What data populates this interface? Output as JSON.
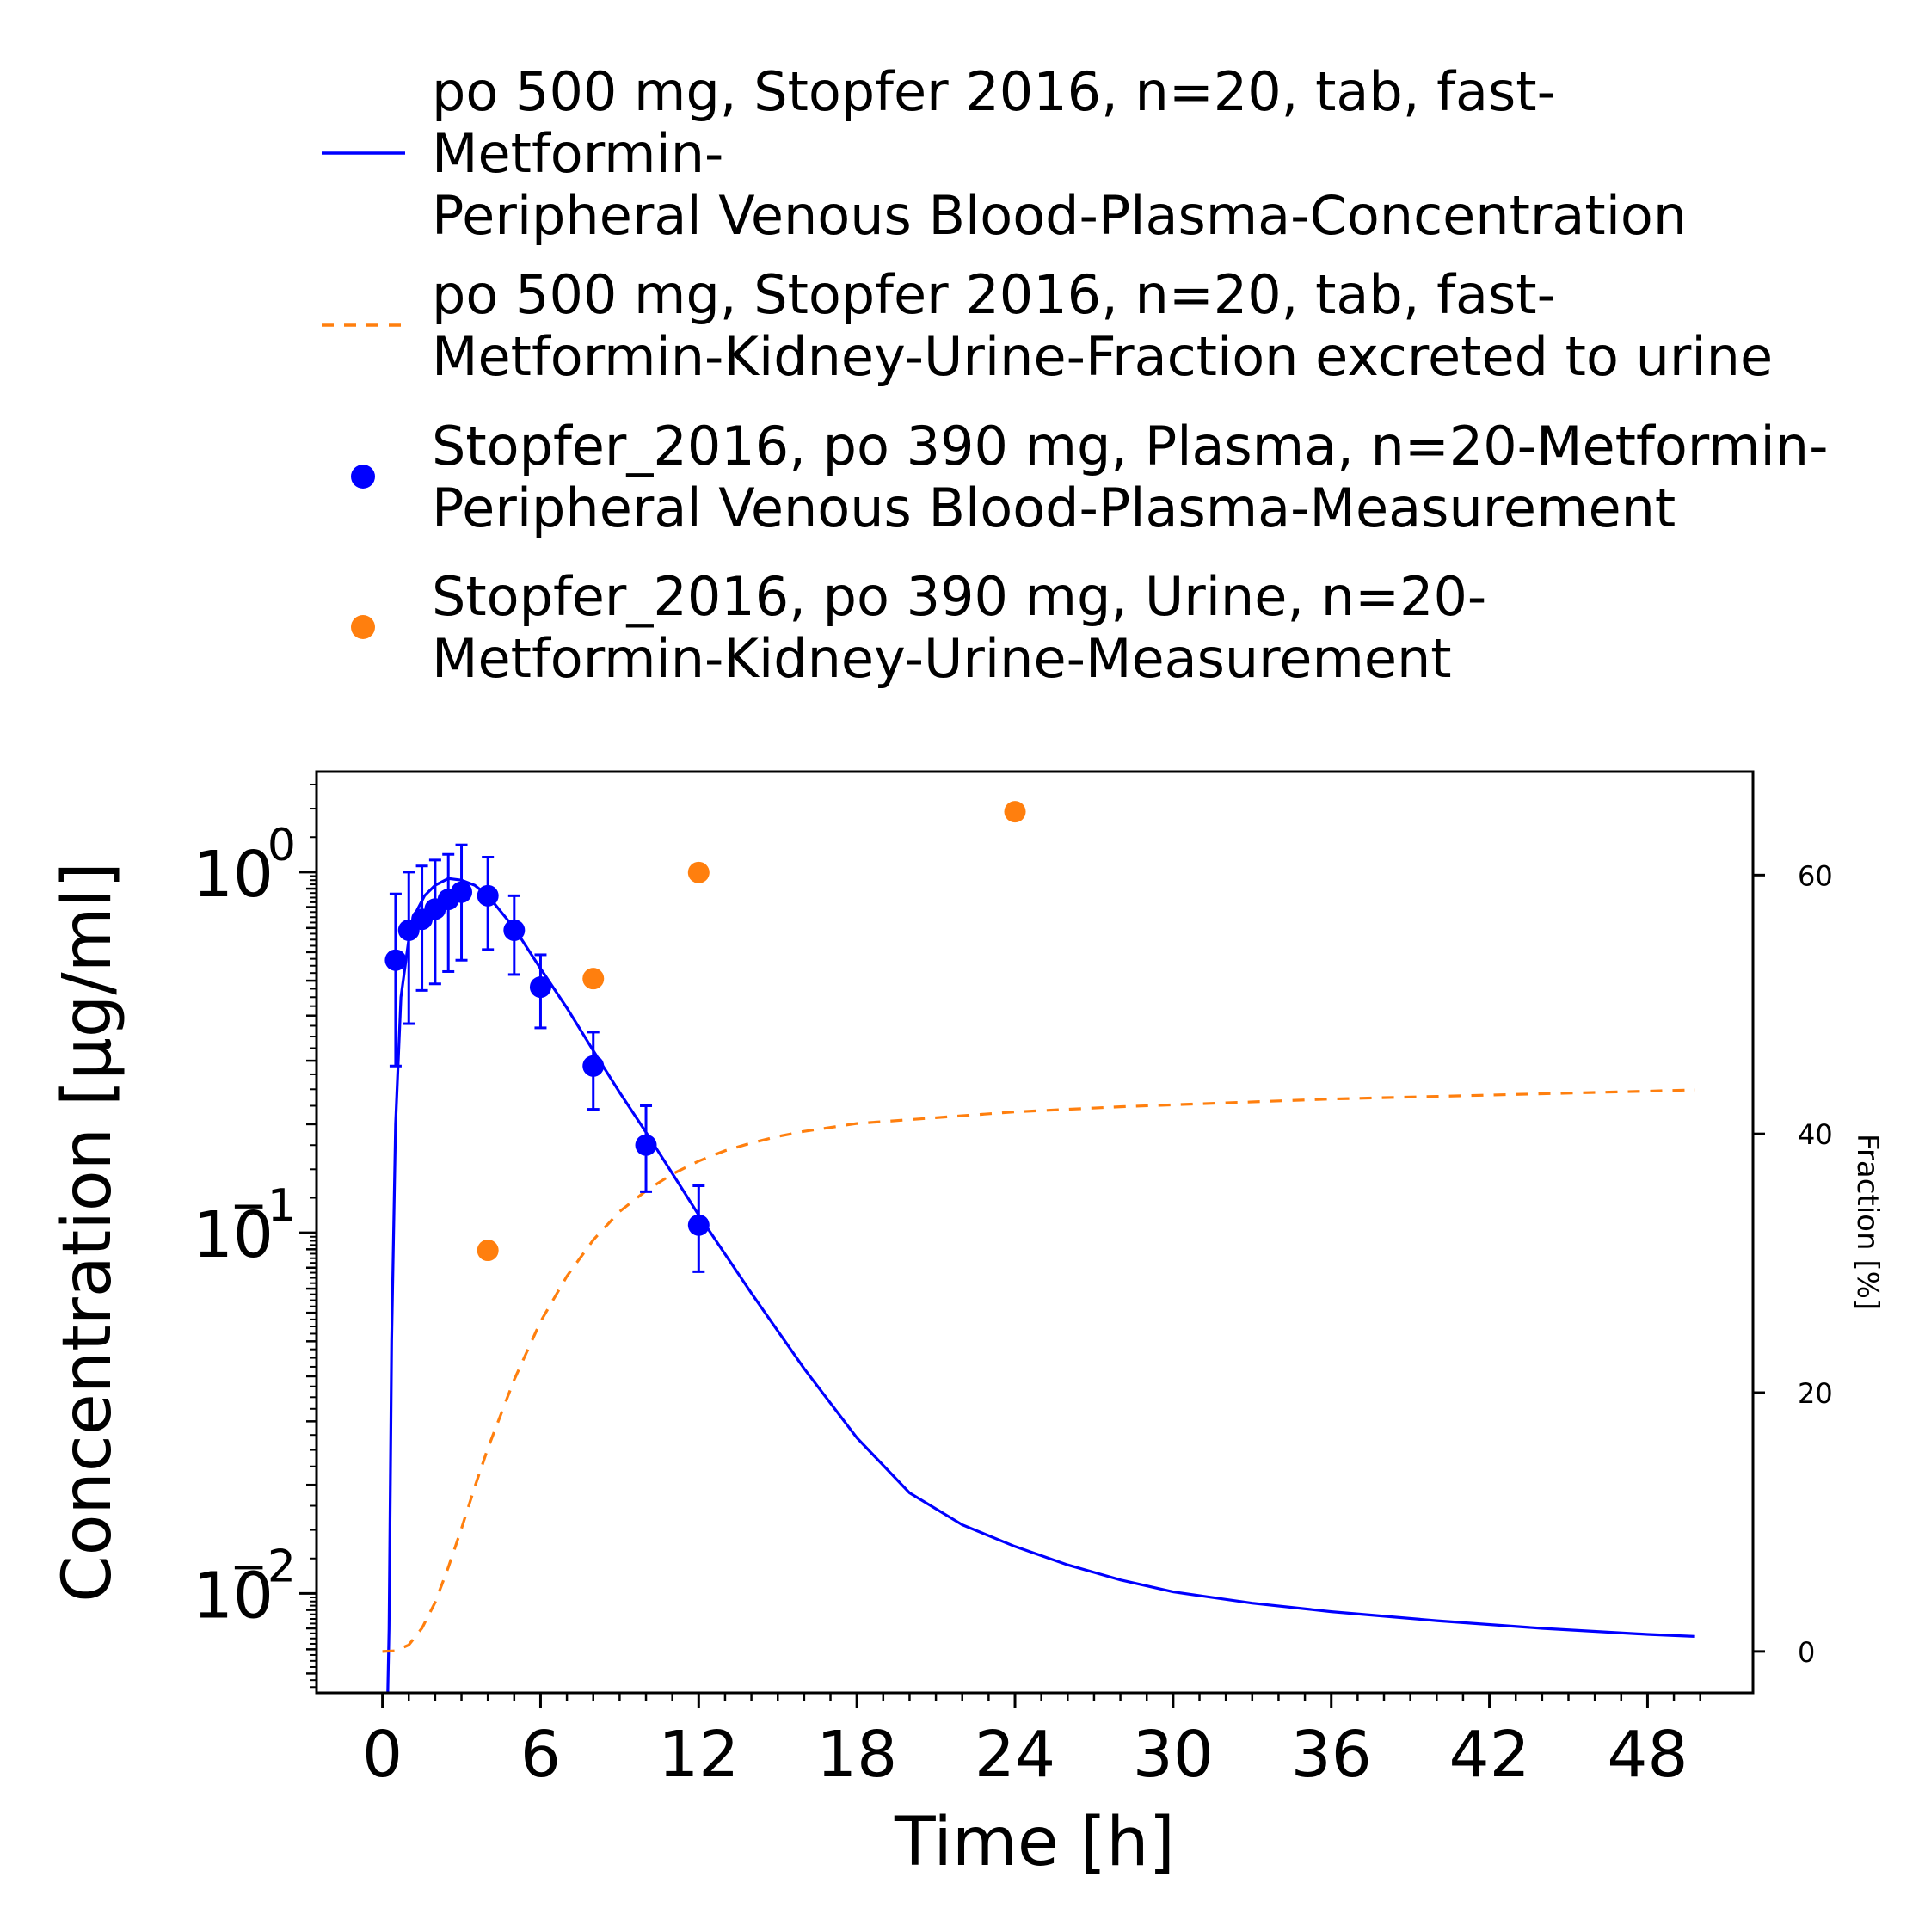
{
  "chart_data": {
    "type": "line",
    "xlabel": "Time [h]",
    "ylabel": "Concentration [µg/ml]",
    "y2label": "Fraction [%]",
    "xlim": [
      -2.5,
      52
    ],
    "ylim": [
      0.0053,
      1.9
    ],
    "y_scale": "log",
    "y2lim": [
      -3.2,
      68
    ],
    "x_ticks": [
      "0",
      "6",
      "12",
      "18",
      "24",
      "30",
      "36",
      "42",
      "48"
    ],
    "y_ticks": [
      {
        "base": "10",
        "exp": "0",
        "value": 1
      },
      {
        "base": "10",
        "exp": "−1",
        "value": 0.1
      },
      {
        "base": "10",
        "exp": "−2",
        "value": 0.01
      }
    ],
    "y2_ticks": [
      "0",
      "20",
      "40",
      "60"
    ],
    "grid": false,
    "legend_position": "top",
    "legend": [
      {
        "lines": [
          "po 500 mg, Stopfer 2016, n=20, tab, fast-",
          "Metformin-",
          "Peripheral Venous Blood-Plasma-Concentration"
        ],
        "style": "solid-line",
        "color": "#0000ff"
      },
      {
        "lines": [
          "po 500 mg, Stopfer 2016, n=20, tab, fast-",
          "Metformin-Kidney-Urine-Fraction excreted to urine"
        ],
        "style": "dashed-line",
        "color": "#ff7f0e"
      },
      {
        "lines": [
          "Stopfer_2016, po 390 mg, Plasma, n=20-Metformin-",
          "Peripheral Venous Blood-Plasma-Measurement"
        ],
        "style": "marker",
        "color": "#0000ff"
      },
      {
        "lines": [
          "Stopfer_2016, po 390 mg, Urine, n=20-",
          "Metformin-Kidney-Urine-Measurement"
        ],
        "style": "marker",
        "color": "#ff7f0e"
      }
    ],
    "series": [
      {
        "kind": "line",
        "axis": "left",
        "color": "#0000ff",
        "x": [
          0.17,
          0.25,
          0.35,
          0.5,
          0.7,
          1.0,
          1.3,
          1.6,
          2.0,
          2.5,
          3.0,
          3.5,
          4.0,
          5.0,
          6.0,
          7.0,
          8.0,
          9.0,
          10.0,
          11.0,
          12.0,
          14.0,
          16.0,
          18.0,
          20.0,
          22.0,
          24.0,
          26.0,
          28.0,
          30.0,
          33.0,
          36.0,
          40.0,
          44.0,
          48.0,
          49.8
        ],
        "y": [
          0.004,
          0.008,
          0.05,
          0.2,
          0.45,
          0.65,
          0.78,
          0.86,
          0.92,
          0.96,
          0.95,
          0.92,
          0.86,
          0.7,
          0.54,
          0.42,
          0.32,
          0.245,
          0.19,
          0.146,
          0.112,
          0.068,
          0.042,
          0.027,
          0.019,
          0.0155,
          0.0135,
          0.012,
          0.0109,
          0.0101,
          0.0094,
          0.0089,
          0.0084,
          0.008,
          0.0077,
          0.0076
        ]
      },
      {
        "kind": "dashed-line",
        "axis": "right",
        "color": "#ff7f0e",
        "x": [
          0,
          0.5,
          1,
          1.5,
          2,
          2.5,
          3,
          3.5,
          4,
          5,
          6,
          7,
          8,
          9,
          10,
          11,
          12,
          13,
          14,
          15,
          16,
          18,
          20,
          24,
          28,
          32,
          36,
          40,
          44,
          48,
          49.8
        ],
        "y": [
          0,
          0.05,
          0.5,
          1.8,
          3.8,
          6.5,
          9.5,
          12.7,
          15.7,
          21,
          25.5,
          29,
          31.8,
          34,
          35.6,
          36.9,
          37.9,
          38.7,
          39.3,
          39.8,
          40.2,
          40.8,
          41.1,
          41.7,
          42.1,
          42.4,
          42.7,
          42.9,
          43.1,
          43.3,
          43.4
        ]
      },
      {
        "kind": "points",
        "axis": "left",
        "color": "#0000ff",
        "error_bars": true,
        "points": [
          {
            "x": 0.5,
            "y": 0.57,
            "lo": 0.29,
            "hi": 0.87
          },
          {
            "x": 1.0,
            "y": 0.69,
            "lo": 0.38,
            "hi": 1.0
          },
          {
            "x": 1.5,
            "y": 0.74,
            "lo": 0.47,
            "hi": 1.04
          },
          {
            "x": 2.0,
            "y": 0.79,
            "lo": 0.49,
            "hi": 1.08
          },
          {
            "x": 2.5,
            "y": 0.84,
            "lo": 0.53,
            "hi": 1.12
          },
          {
            "x": 3.0,
            "y": 0.88,
            "lo": 0.57,
            "hi": 1.19
          },
          {
            "x": 4.0,
            "y": 0.86,
            "lo": 0.61,
            "hi": 1.1
          },
          {
            "x": 5.0,
            "y": 0.69,
            "lo": 0.52,
            "hi": 0.86
          },
          {
            "x": 6.0,
            "y": 0.48,
            "lo": 0.37,
            "hi": 0.59
          },
          {
            "x": 8.0,
            "y": 0.29,
            "lo": 0.22,
            "hi": 0.36
          },
          {
            "x": 10.0,
            "y": 0.175,
            "lo": 0.13,
            "hi": 0.225
          },
          {
            "x": 12.0,
            "y": 0.105,
            "lo": 0.078,
            "hi": 0.135
          }
        ]
      },
      {
        "kind": "points",
        "axis": "right",
        "color": "#ff7f0e",
        "points": [
          {
            "x": 4.0,
            "y": 31
          },
          {
            "x": 8.0,
            "y": 52
          },
          {
            "x": 12.0,
            "y": 60.2
          },
          {
            "x": 24.0,
            "y": 64.9
          }
        ]
      }
    ]
  }
}
